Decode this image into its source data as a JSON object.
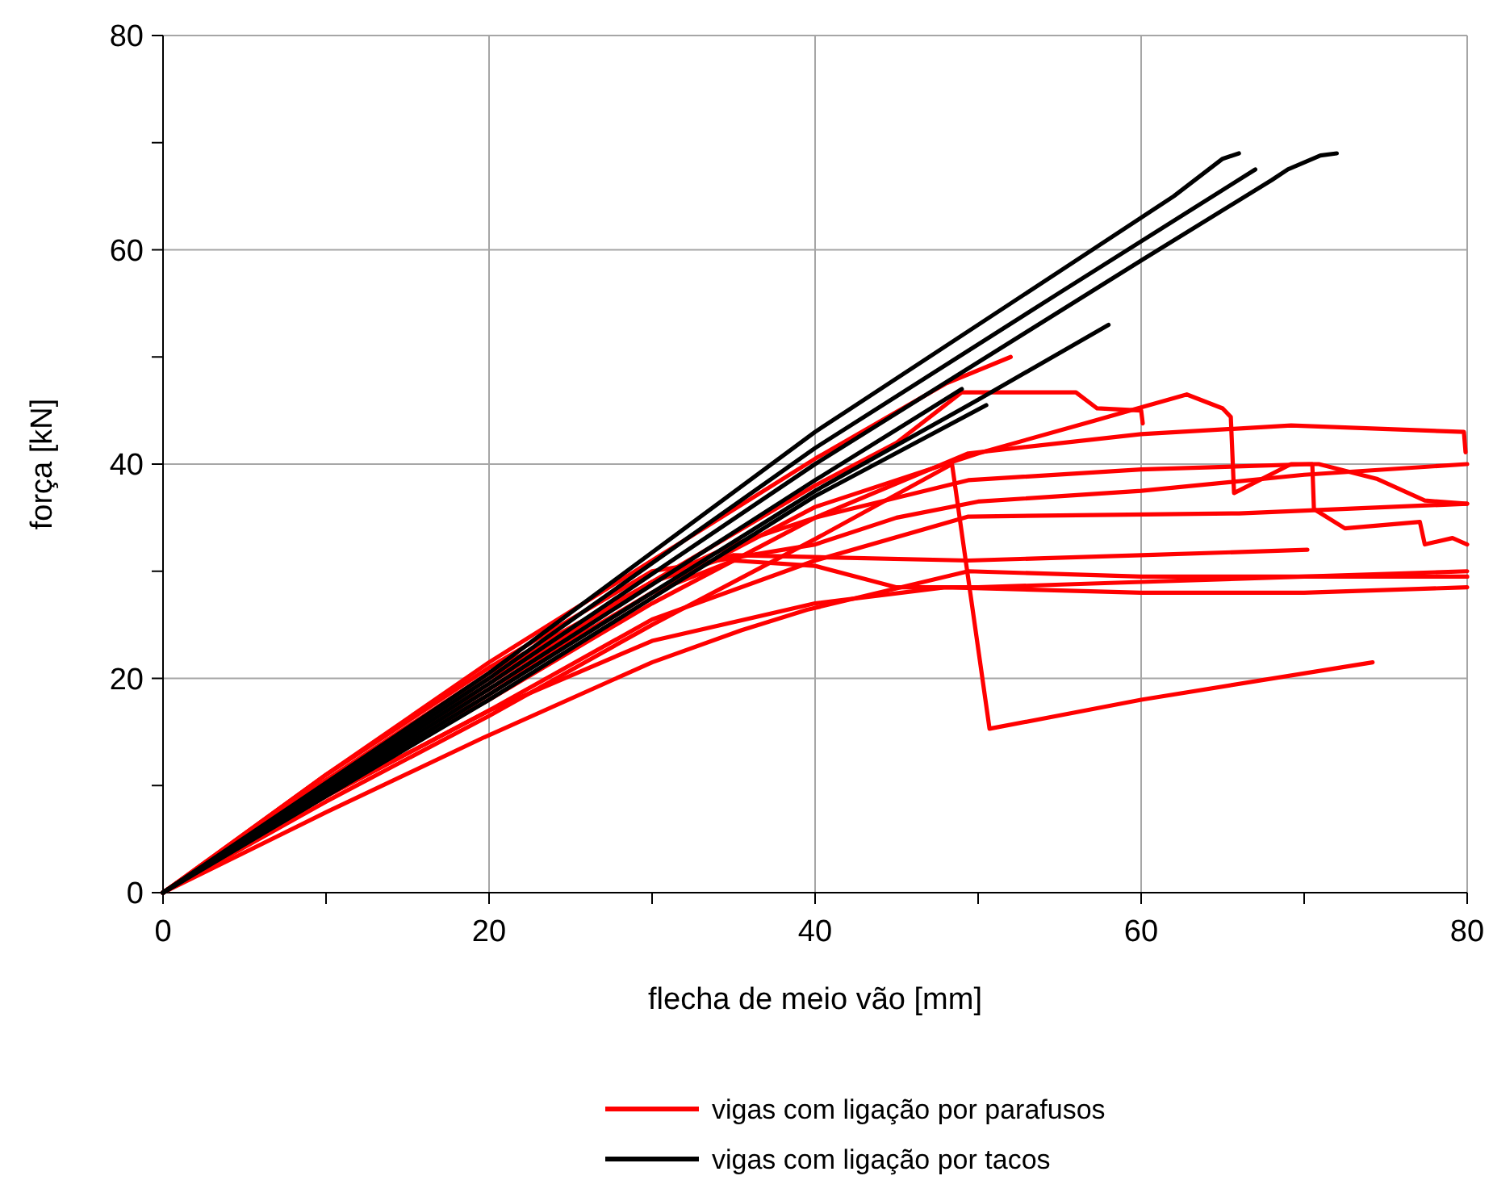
{
  "chart_data": {
    "type": "line",
    "xlabel": "flecha de meio vão [mm]",
    "ylabel": "força [kN]",
    "xlim": [
      0,
      80
    ],
    "ylim": [
      0,
      80
    ],
    "xticks": [
      0,
      {
        "value": 10,
        "label": null
      },
      20,
      {
        "value": 30,
        "label": null
      },
      40,
      {
        "value": 50,
        "label": null
      },
      60,
      {
        "value": 70,
        "label": null
      },
      80
    ],
    "yticks": [
      0,
      {
        "value": 10,
        "label": null
      },
      20,
      {
        "value": 30,
        "label": null
      },
      40,
      {
        "value": 50,
        "label": null
      },
      60,
      {
        "value": 70,
        "label": null
      },
      80
    ],
    "grid": true,
    "legend": "bottom",
    "marker": "none",
    "line_style": "solid",
    "series": [
      {
        "name": "vigas com ligação por parafusos",
        "color": "#ff0000",
        "x": [
          0,
          10,
          20,
          30,
          40,
          48,
          52
        ],
        "values": [
          0,
          11,
          21.5,
          31,
          40.5,
          47.5,
          50
        ]
      },
      {
        "color": "#ff0000",
        "x": [
          0,
          10,
          20,
          30,
          40,
          45,
          49,
          56,
          57.3,
          60,
          60.1
        ],
        "values": [
          0,
          10,
          19.5,
          29,
          38,
          42,
          46.7,
          46.7,
          45.2,
          45,
          43.8
        ]
      },
      {
        "color": "#ff0000",
        "x": [
          0,
          10,
          20,
          30,
          40,
          50,
          57,
          62.8,
          65,
          65.5,
          65.7,
          69.2,
          70.9,
          74.5,
          77.4,
          80
        ],
        "values": [
          0,
          9.5,
          18.5,
          28,
          36,
          41,
          44,
          46.5,
          45.2,
          44.4,
          37.3,
          40,
          40,
          38.6,
          36.6,
          36.3
        ]
      },
      {
        "color": "#ff0000",
        "x": [
          0,
          10,
          20,
          30,
          40,
          49.4,
          60,
          69.2,
          79.8,
          79.9
        ],
        "values": [
          0,
          9.5,
          18,
          27,
          35,
          41,
          42.8,
          43.6,
          43,
          41.1
        ]
      },
      {
        "color": "#ff0000",
        "x": [
          0,
          10,
          20,
          30,
          35,
          40,
          49.4,
          60,
          70.5,
          70.6,
          72.5,
          77.1,
          77.4,
          79.1,
          80
        ],
        "values": [
          0,
          10.5,
          20,
          29,
          32.5,
          35,
          38.5,
          39.5,
          40,
          35.8,
          34,
          34.6,
          32.5,
          33.1,
          32.5
        ]
      },
      {
        "color": "#ff0000",
        "x": [
          0,
          10,
          20,
          30,
          40,
          49.4,
          66,
          80
        ],
        "values": [
          0,
          9,
          17,
          25.5,
          31,
          35.1,
          35.4,
          36.3
        ]
      },
      {
        "color": "#ff0000",
        "x": [
          0,
          10,
          20,
          30,
          35,
          49.4,
          60,
          70.2
        ],
        "values": [
          0,
          10.5,
          20.5,
          29,
          31.5,
          31,
          31.5,
          32
        ]
      },
      {
        "color": "#ff0000",
        "x": [
          0,
          10,
          20,
          30,
          35,
          40,
          45,
          50,
          60,
          70,
          80
        ],
        "values": [
          0,
          10,
          19,
          28,
          31,
          30.5,
          28.5,
          28.5,
          29,
          29.5,
          30
        ]
      },
      {
        "color": "#ff0000",
        "x": [
          0,
          10,
          20,
          30,
          40,
          48,
          60,
          70,
          80
        ],
        "values": [
          0,
          9,
          17,
          23.5,
          27,
          28.5,
          28,
          28,
          28.5
        ]
      },
      {
        "color": "#ff0000",
        "x": [
          0,
          10,
          20,
          30,
          40,
          48.4,
          50.7,
          60,
          74.2
        ],
        "values": [
          0,
          8.5,
          16.5,
          25,
          33,
          40,
          15.3,
          18,
          21.5
        ]
      },
      {
        "color": "#ff0000",
        "x": [
          0,
          10,
          19.7,
          30,
          35.5,
          39.5,
          49.4,
          60,
          70,
          80
        ],
        "values": [
          0,
          7.5,
          14.5,
          21.5,
          24.5,
          26.4,
          30,
          29.5,
          29.5,
          29.5
        ]
      },
      {
        "color": "#ff0000",
        "x": [
          0,
          10,
          20,
          30,
          40,
          45,
          50,
          60,
          70,
          80
        ],
        "values": [
          0,
          11,
          21,
          30,
          32.5,
          35,
          36.5,
          37.5,
          39,
          40
        ]
      },
      {
        "name": "vigas com ligação por tacos",
        "color": "#000000",
        "x": [
          0,
          20,
          40,
          55,
          62,
          65,
          66
        ],
        "values": [
          0,
          20.5,
          43,
          58,
          65,
          68.5,
          69
        ]
      },
      {
        "color": "#000000",
        "x": [
          0,
          20,
          40,
          55,
          67
        ],
        "values": [
          0,
          20,
          41.5,
          56,
          67.5
        ]
      },
      {
        "color": "#000000",
        "x": [
          0,
          20,
          40,
          60,
          68,
          69,
          71,
          72
        ],
        "values": [
          0,
          19.5,
          40,
          59,
          66.5,
          67.5,
          68.8,
          69
        ]
      },
      {
        "color": "#000000",
        "x": [
          0,
          20,
          40,
          50,
          58
        ],
        "values": [
          0,
          18.5,
          37.5,
          46,
          53
        ]
      },
      {
        "color": "#000000",
        "x": [
          0,
          20,
          40,
          49
        ],
        "values": [
          0,
          19,
          38.5,
          47
        ]
      },
      {
        "color": "#000000",
        "x": [
          0,
          20,
          40,
          50.5
        ],
        "values": [
          0,
          18,
          37,
          45.5
        ]
      }
    ]
  }
}
